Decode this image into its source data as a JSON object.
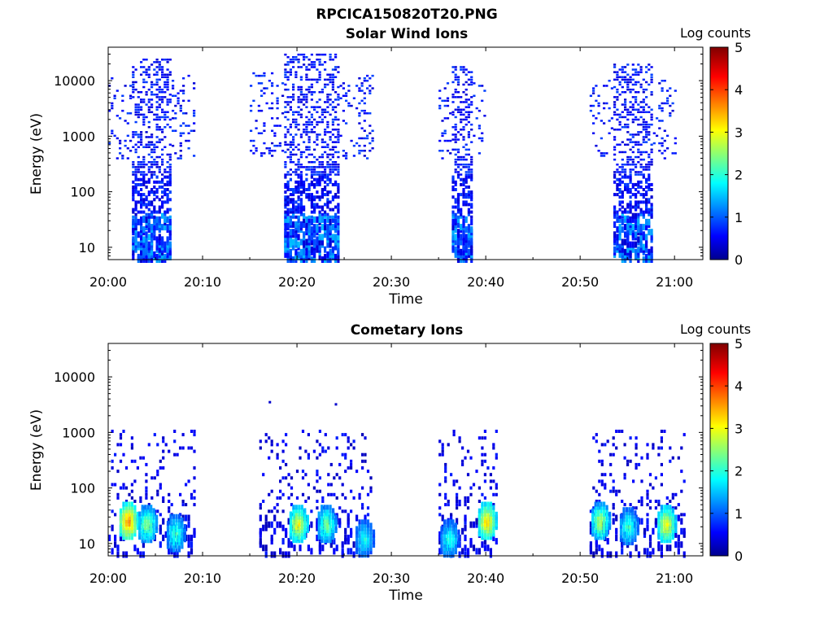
{
  "figure": {
    "title": "RPCICA150820T20.PNG"
  },
  "colormap": {
    "name": "jet",
    "stops": [
      "#00008F",
      "#0000FF",
      "#00FFFF",
      "#FFFF00",
      "#FF0000",
      "#800000"
    ]
  },
  "chart_data": [
    {
      "type": "heatmap",
      "title": "Solar Wind Ions",
      "xlabel": "Time",
      "ylabel": "Energy (eV)",
      "colorbar_label": "Log counts",
      "y_scale": "log",
      "xlim": [
        "20:00",
        "21:03"
      ],
      "ylim": [
        6,
        40000
      ],
      "x_ticks": [
        "20:00",
        "20:10",
        "20:20",
        "20:30",
        "20:40",
        "20:50",
        "21:00"
      ],
      "y_ticks": [
        "10",
        "100",
        "1000",
        "10000"
      ],
      "colorbar_ticks": [
        "0",
        "1",
        "2",
        "3",
        "4",
        "5"
      ],
      "clim": [
        0,
        5
      ],
      "bursts": [
        {
          "t_start": "20:00",
          "t_end": "20:09",
          "e_min": 6,
          "e_max": 25000,
          "peak_log_counts": 1.2
        },
        {
          "t_start": "20:15",
          "t_end": "20:28",
          "e_min": 6,
          "e_max": 30000,
          "peak_log_counts": 1.2
        },
        {
          "t_start": "20:35",
          "t_end": "20:40",
          "e_min": 6,
          "e_max": 18000,
          "peak_log_counts": 1.2
        },
        {
          "t_start": "20:51",
          "t_end": "21:00",
          "e_min": 6,
          "e_max": 20000,
          "peak_log_counts": 1.2
        }
      ]
    },
    {
      "type": "heatmap",
      "title": "Cometary Ions",
      "xlabel": "Time",
      "ylabel": "Energy (eV)",
      "colorbar_label": "Log counts",
      "y_scale": "log",
      "xlim": [
        "20:00",
        "21:03"
      ],
      "ylim": [
        6,
        40000
      ],
      "x_ticks": [
        "20:00",
        "20:10",
        "20:20",
        "20:30",
        "20:40",
        "20:50",
        "21:00"
      ],
      "y_ticks": [
        "10",
        "100",
        "1000",
        "10000"
      ],
      "colorbar_ticks": [
        "0",
        "1",
        "2",
        "3",
        "4",
        "5"
      ],
      "clim": [
        0,
        5
      ],
      "hotspots": [
        {
          "time": "20:02",
          "energy": 25,
          "log_counts": 3.8
        },
        {
          "time": "20:04",
          "energy": 22,
          "log_counts": 2.6
        },
        {
          "time": "20:07",
          "energy": 15,
          "log_counts": 2.2
        },
        {
          "time": "20:20",
          "energy": 22,
          "log_counts": 3.2
        },
        {
          "time": "20:23",
          "energy": 22,
          "log_counts": 2.5
        },
        {
          "time": "20:27",
          "energy": 12,
          "log_counts": 2.0
        },
        {
          "time": "20:36",
          "energy": 12,
          "log_counts": 2.1
        },
        {
          "time": "20:40",
          "energy": 25,
          "log_counts": 3.4
        },
        {
          "time": "20:52",
          "energy": 25,
          "log_counts": 2.8
        },
        {
          "time": "20:55",
          "energy": 20,
          "log_counts": 2.2
        },
        {
          "time": "20:59",
          "energy": 22,
          "log_counts": 3.2
        }
      ]
    }
  ]
}
